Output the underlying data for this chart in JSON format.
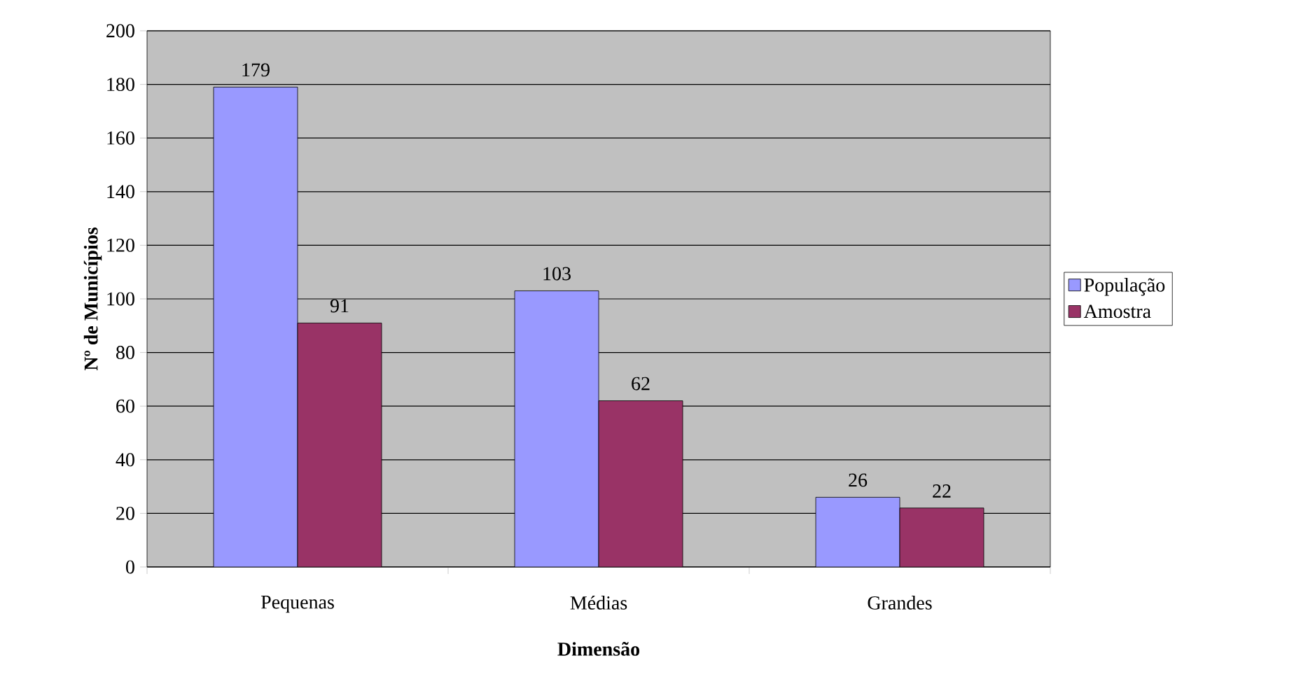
{
  "chart_data": {
    "type": "bar",
    "xlabel": "Dimensão",
    "ylabel": "Nº de Municípios",
    "categories": [
      "Pequenas",
      "Médias",
      "Grandes"
    ],
    "series": [
      {
        "name": "População",
        "color": "#9999ff",
        "values": [
          179,
          103,
          26
        ]
      },
      {
        "name": "Amostra",
        "color": "#993366",
        "values": [
          91,
          62,
          22
        ]
      }
    ],
    "ylim": [
      0,
      200
    ],
    "yticks": [
      0,
      20,
      40,
      60,
      80,
      100,
      120,
      140,
      160,
      180,
      200
    ],
    "grid": "y",
    "legend": "right",
    "data_labels": true
  }
}
